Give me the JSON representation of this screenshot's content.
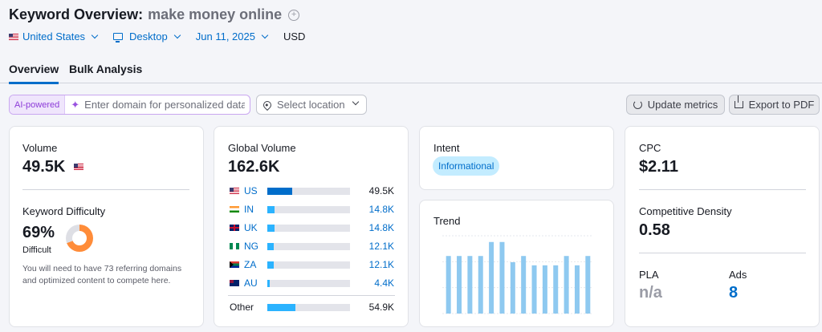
{
  "header": {
    "title": "Keyword Overview:",
    "keyword": "make money online"
  },
  "filters": {
    "country": "United States",
    "device": "Desktop",
    "date": "Jun 11, 2025",
    "currency": "USD"
  },
  "tabs": [
    {
      "label": "Overview",
      "active": true
    },
    {
      "label": "Bulk Analysis",
      "active": false
    }
  ],
  "toolbar": {
    "ai_badge": "AI-powered",
    "domain_placeholder": "Enter domain for personalized data",
    "location_placeholder": "Select location",
    "update_label": "Update metrics",
    "export_label": "Export to PDF"
  },
  "volume": {
    "label": "Volume",
    "value": "49.5K"
  },
  "difficulty": {
    "label": "Keyword Difficulty",
    "value": "69%",
    "level": "Difficult",
    "percent": 69,
    "note": "You will need to have 73 referring domains and optimized content to compete here."
  },
  "global_volume": {
    "label": "Global Volume",
    "value": "162.6K",
    "rows": [
      {
        "code": "US",
        "value": "49.5K",
        "share": 0.3
      },
      {
        "code": "IN",
        "value": "14.8K",
        "share": 0.09
      },
      {
        "code": "UK",
        "value": "14.8K",
        "share": 0.09
      },
      {
        "code": "NG",
        "value": "12.1K",
        "share": 0.074
      },
      {
        "code": "ZA",
        "value": "12.1K",
        "share": 0.074
      },
      {
        "code": "AU",
        "value": "4.4K",
        "share": 0.027
      }
    ],
    "other": {
      "label": "Other",
      "value": "54.9K",
      "share": 0.34
    }
  },
  "intent": {
    "label": "Intent",
    "value": "Informational"
  },
  "trend": {
    "label": "Trend",
    "values": [
      0.74,
      0.74,
      0.74,
      0.74,
      0.92,
      0.92,
      0.66,
      0.74,
      0.62,
      0.62,
      0.62,
      0.74,
      0.62,
      0.74
    ]
  },
  "cpc": {
    "label": "CPC",
    "value": "$2.11"
  },
  "competitive_density": {
    "label": "Competitive Density",
    "value": "0.58"
  },
  "pla": {
    "label": "PLA",
    "value": "n/a"
  },
  "ads": {
    "label": "Ads",
    "value": "8"
  },
  "colors": {
    "accent": "#006dca",
    "bar_light": "#2bb3ff",
    "trend_bar": "#8ec9f0",
    "difficulty": "#ff8c39"
  }
}
